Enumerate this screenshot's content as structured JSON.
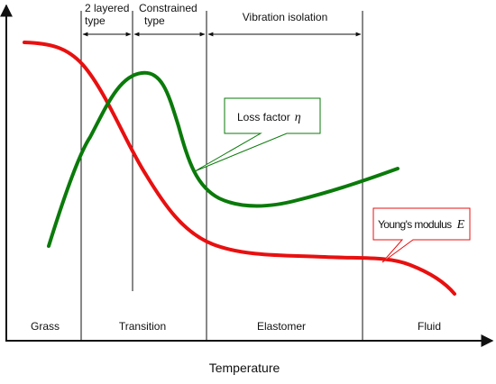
{
  "axes": {
    "x_label": "Temperature"
  },
  "regions": [
    {
      "label": "Grass"
    },
    {
      "label": "Transition"
    },
    {
      "label": "Elastomer"
    },
    {
      "label": "Fluid"
    }
  ],
  "damping_types": [
    {
      "label_line1": "2 layered",
      "label_line2": "type"
    },
    {
      "label_line1": "Constrained",
      "label_line2": "type"
    },
    {
      "label_line1": "Vibration isolation",
      "label_line2": ""
    }
  ],
  "curves": {
    "loss_factor": {
      "label": "Loss factor",
      "symbol": "η",
      "color": "#0a7a0a"
    },
    "youngs_modulus": {
      "label": "Young's modulus",
      "symbol": "E",
      "color": "#e81010"
    }
  }
}
